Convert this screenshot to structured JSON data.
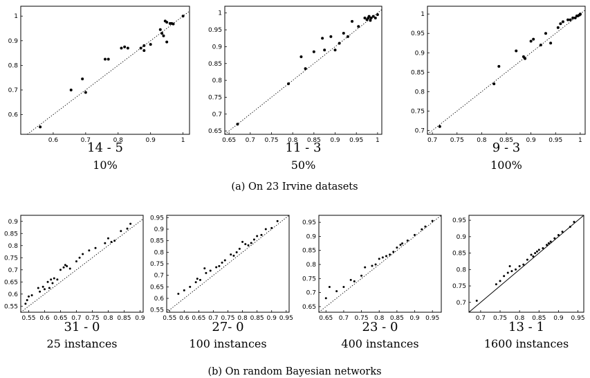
{
  "captions": {
    "a": "(a) On 23 Irvine datasets",
    "b": "(b) On random Bayesian networks"
  },
  "chart_data": [
    {
      "type": "scatter",
      "group": "a",
      "score": "14 - 5",
      "subtitle": "10%",
      "diagonal": "dotted",
      "xlim": [
        0.5,
        1.02
      ],
      "ylim": [
        0.52,
        1.04
      ],
      "xticks": [
        0.6,
        0.7,
        0.8,
        0.9,
        1
      ],
      "yticks": [
        0.6,
        0.7,
        0.8,
        0.9,
        1
      ],
      "points": [
        [
          0.56,
          0.55
        ],
        [
          0.655,
          0.7
        ],
        [
          0.69,
          0.745
        ],
        [
          0.7,
          0.69
        ],
        [
          0.76,
          0.825
        ],
        [
          0.77,
          0.825
        ],
        [
          0.81,
          0.87
        ],
        [
          0.82,
          0.875
        ],
        [
          0.83,
          0.87
        ],
        [
          0.87,
          0.87
        ],
        [
          0.88,
          0.88
        ],
        [
          0.88,
          0.86
        ],
        [
          0.9,
          0.885
        ],
        [
          0.93,
          0.945
        ],
        [
          0.935,
          0.93
        ],
        [
          0.94,
          0.92
        ],
        [
          0.945,
          0.98
        ],
        [
          0.95,
          0.975
        ],
        [
          0.95,
          0.895
        ],
        [
          0.96,
          0.97
        ],
        [
          0.965,
          0.97
        ],
        [
          0.97,
          0.968
        ],
        [
          1.0,
          1.0
        ]
      ]
    },
    {
      "type": "scatter",
      "group": "a",
      "score": "11 - 3",
      "subtitle": "50%",
      "diagonal": "dotted",
      "xlim": [
        0.64,
        1.01
      ],
      "ylim": [
        0.64,
        1.02
      ],
      "xticks": [
        0.65,
        0.7,
        0.75,
        0.8,
        0.85,
        0.9,
        0.95,
        1
      ],
      "yticks": [
        0.65,
        0.7,
        0.75,
        0.8,
        0.85,
        0.9,
        0.95,
        1
      ],
      "points": [
        [
          0.67,
          0.67
        ],
        [
          0.79,
          0.79
        ],
        [
          0.82,
          0.87
        ],
        [
          0.83,
          0.835
        ],
        [
          0.85,
          0.885
        ],
        [
          0.87,
          0.925
        ],
        [
          0.875,
          0.89
        ],
        [
          0.89,
          0.93
        ],
        [
          0.9,
          0.89
        ],
        [
          0.91,
          0.91
        ],
        [
          0.92,
          0.94
        ],
        [
          0.93,
          0.93
        ],
        [
          0.94,
          0.975
        ],
        [
          0.955,
          0.96
        ],
        [
          0.97,
          0.985
        ],
        [
          0.975,
          0.98
        ],
        [
          0.978,
          0.985
        ],
        [
          0.98,
          0.99
        ],
        [
          0.983,
          0.978
        ],
        [
          0.985,
          0.985
        ],
        [
          0.99,
          0.99
        ],
        [
          0.995,
          0.985
        ],
        [
          1.0,
          0.995
        ]
      ]
    },
    {
      "type": "scatter",
      "group": "a",
      "score": "9 - 3",
      "subtitle": "100%",
      "diagonal": "dotted",
      "xlim": [
        0.69,
        1.01
      ],
      "ylim": [
        0.69,
        1.02
      ],
      "xticks": [
        0.7,
        0.75,
        0.8,
        0.85,
        0.9,
        0.95,
        1
      ],
      "yticks": [
        0.7,
        0.75,
        0.8,
        0.85,
        0.9,
        0.95,
        1
      ],
      "points": [
        [
          0.715,
          0.71
        ],
        [
          0.825,
          0.82
        ],
        [
          0.835,
          0.865
        ],
        [
          0.87,
          0.905
        ],
        [
          0.885,
          0.89
        ],
        [
          0.888,
          0.885
        ],
        [
          0.9,
          0.93
        ],
        [
          0.905,
          0.935
        ],
        [
          0.92,
          0.92
        ],
        [
          0.93,
          0.95
        ],
        [
          0.94,
          0.925
        ],
        [
          0.955,
          0.965
        ],
        [
          0.96,
          0.975
        ],
        [
          0.965,
          0.98
        ],
        [
          0.975,
          0.985
        ],
        [
          0.98,
          0.985
        ],
        [
          0.985,
          0.99
        ],
        [
          0.99,
          0.99
        ],
        [
          0.993,
          0.995
        ],
        [
          0.995,
          0.995
        ],
        [
          0.998,
          0.997
        ],
        [
          1.0,
          0.999
        ],
        [
          1.0,
          1.0
        ]
      ]
    },
    {
      "type": "scatter",
      "group": "b",
      "score": "31 - 0",
      "subtitle": "25 instances",
      "diagonal": "dotted",
      "xlim": [
        0.525,
        0.91
      ],
      "ylim": [
        0.525,
        0.925
      ],
      "xticks": [
        0.55,
        0.6,
        0.65,
        0.7,
        0.75,
        0.8,
        0.85,
        0.9
      ],
      "yticks": [
        0.55,
        0.6,
        0.65,
        0.7,
        0.75,
        0.8,
        0.85,
        0.9
      ],
      "points": [
        [
          0.54,
          0.56
        ],
        [
          0.545,
          0.575
        ],
        [
          0.55,
          0.59
        ],
        [
          0.56,
          0.595
        ],
        [
          0.58,
          0.625
        ],
        [
          0.585,
          0.61
        ],
        [
          0.595,
          0.63
        ],
        [
          0.61,
          0.65
        ],
        [
          0.615,
          0.625
        ],
        [
          0.62,
          0.66
        ],
        [
          0.63,
          0.665
        ],
        [
          0.64,
          0.66
        ],
        [
          0.65,
          0.7
        ],
        [
          0.66,
          0.71
        ],
        [
          0.665,
          0.72
        ],
        [
          0.68,
          0.705
        ],
        [
          0.7,
          0.735
        ],
        [
          0.71,
          0.75
        ],
        [
          0.72,
          0.765
        ],
        [
          0.74,
          0.78
        ],
        [
          0.76,
          0.79
        ],
        [
          0.79,
          0.81
        ],
        [
          0.8,
          0.83
        ],
        [
          0.81,
          0.815
        ],
        [
          0.82,
          0.82
        ],
        [
          0.84,
          0.86
        ],
        [
          0.86,
          0.87
        ],
        [
          0.87,
          0.89
        ],
        [
          0.6,
          0.62
        ],
        [
          0.625,
          0.645
        ],
        [
          0.67,
          0.715
        ]
      ]
    },
    {
      "type": "scatter",
      "group": "b",
      "score": "27- 0",
      "subtitle": "100 instances",
      "diagonal": "dotted",
      "xlim": [
        0.54,
        0.96
      ],
      "ylim": [
        0.54,
        0.96
      ],
      "xticks": [
        0.55,
        0.6,
        0.65,
        0.7,
        0.75,
        0.8,
        0.85,
        0.9,
        0.95
      ],
      "yticks": [
        0.55,
        0.6,
        0.65,
        0.7,
        0.75,
        0.8,
        0.85,
        0.9,
        0.95
      ],
      "points": [
        [
          0.58,
          0.62
        ],
        [
          0.6,
          0.635
        ],
        [
          0.62,
          0.65
        ],
        [
          0.64,
          0.67
        ],
        [
          0.645,
          0.685
        ],
        [
          0.655,
          0.68
        ],
        [
          0.67,
          0.73
        ],
        [
          0.675,
          0.71
        ],
        [
          0.69,
          0.72
        ],
        [
          0.71,
          0.735
        ],
        [
          0.72,
          0.74
        ],
        [
          0.73,
          0.755
        ],
        [
          0.74,
          0.765
        ],
        [
          0.76,
          0.79
        ],
        [
          0.77,
          0.785
        ],
        [
          0.78,
          0.8
        ],
        [
          0.79,
          0.815
        ],
        [
          0.8,
          0.845
        ],
        [
          0.81,
          0.835
        ],
        [
          0.82,
          0.83
        ],
        [
          0.83,
          0.84
        ],
        [
          0.84,
          0.855
        ],
        [
          0.85,
          0.87
        ],
        [
          0.865,
          0.875
        ],
        [
          0.88,
          0.9
        ],
        [
          0.9,
          0.905
        ],
        [
          0.92,
          0.935
        ]
      ]
    },
    {
      "type": "scatter",
      "group": "b",
      "score": "23 - 0",
      "subtitle": "400 instances",
      "diagonal": "dotted",
      "xlim": [
        0.63,
        0.975
      ],
      "ylim": [
        0.63,
        0.975
      ],
      "xticks": [
        0.65,
        0.7,
        0.75,
        0.8,
        0.85,
        0.9,
        0.95
      ],
      "yticks": [
        0.65,
        0.7,
        0.75,
        0.8,
        0.85,
        0.9,
        0.95
      ],
      "points": [
        [
          0.65,
          0.68
        ],
        [
          0.66,
          0.72
        ],
        [
          0.68,
          0.705
        ],
        [
          0.7,
          0.72
        ],
        [
          0.72,
          0.745
        ],
        [
          0.73,
          0.74
        ],
        [
          0.75,
          0.76
        ],
        [
          0.76,
          0.79
        ],
        [
          0.78,
          0.795
        ],
        [
          0.79,
          0.8
        ],
        [
          0.8,
          0.82
        ],
        [
          0.81,
          0.825
        ],
        [
          0.82,
          0.83
        ],
        [
          0.83,
          0.835
        ],
        [
          0.84,
          0.845
        ],
        [
          0.85,
          0.86
        ],
        [
          0.86,
          0.87
        ],
        [
          0.865,
          0.875
        ],
        [
          0.88,
          0.885
        ],
        [
          0.9,
          0.905
        ],
        [
          0.92,
          0.925
        ],
        [
          0.93,
          0.935
        ],
        [
          0.95,
          0.955
        ]
      ]
    },
    {
      "type": "scatter",
      "group": "b",
      "score": "13 - 1",
      "subtitle": "1600 instances",
      "diagonal": "solid",
      "xlim": [
        0.67,
        0.965
      ],
      "ylim": [
        0.67,
        0.965
      ],
      "xticks": [
        0.7,
        0.75,
        0.8,
        0.85,
        0.9,
        0.95
      ],
      "yticks": [
        0.7,
        0.75,
        0.8,
        0.85,
        0.9,
        0.95
      ],
      "points": [
        [
          0.69,
          0.705
        ],
        [
          0.74,
          0.755
        ],
        [
          0.75,
          0.765
        ],
        [
          0.76,
          0.78
        ],
        [
          0.77,
          0.79
        ],
        [
          0.775,
          0.81
        ],
        [
          0.78,
          0.795
        ],
        [
          0.79,
          0.8
        ],
        [
          0.8,
          0.81
        ],
        [
          0.81,
          0.815
        ],
        [
          0.82,
          0.83
        ],
        [
          0.83,
          0.845
        ],
        [
          0.835,
          0.84
        ],
        [
          0.84,
          0.85
        ],
        [
          0.845,
          0.855
        ],
        [
          0.85,
          0.86
        ],
        [
          0.86,
          0.865
        ],
        [
          0.87,
          0.875
        ],
        [
          0.875,
          0.88
        ],
        [
          0.88,
          0.885
        ],
        [
          0.89,
          0.895
        ],
        [
          0.9,
          0.905
        ],
        [
          0.91,
          0.915
        ],
        [
          0.93,
          0.93
        ],
        [
          0.94,
          0.945
        ]
      ]
    }
  ]
}
